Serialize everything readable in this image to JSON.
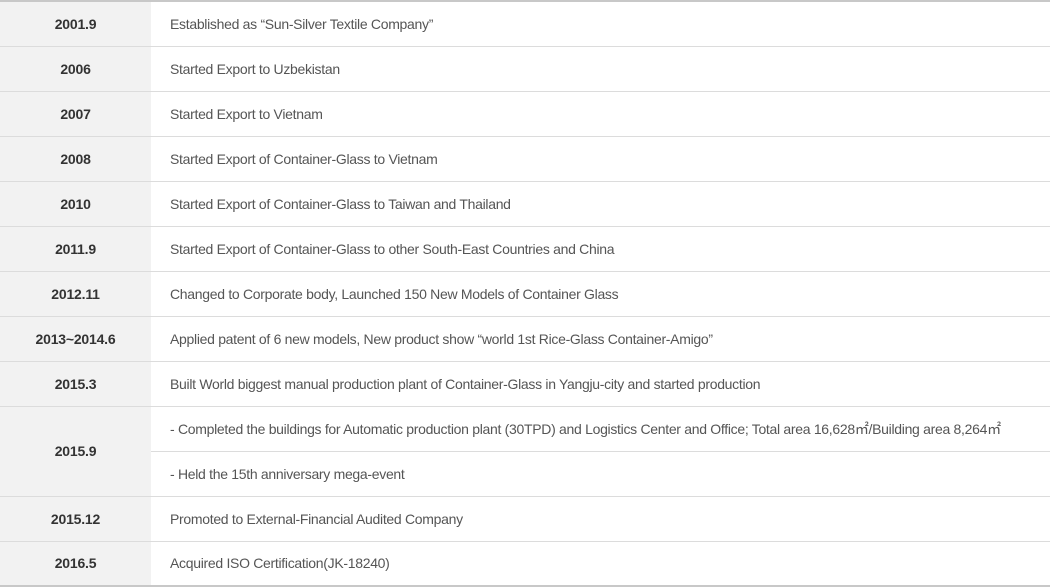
{
  "history": [
    {
      "year": "2001.9",
      "events": [
        "Established as “Sun-Silver Textile Company”"
      ]
    },
    {
      "year": "2006",
      "events": [
        "Started Export to Uzbekistan"
      ]
    },
    {
      "year": "2007",
      "events": [
        "Started Export to Vietnam"
      ]
    },
    {
      "year": "2008",
      "events": [
        "Started Export of Container-Glass to Vietnam"
      ]
    },
    {
      "year": "2010",
      "events": [
        "Started Export of Container-Glass to Taiwan and Thailand"
      ]
    },
    {
      "year": "2011.9",
      "events": [
        "Started Export of Container-Glass to other South-East Countries and China"
      ]
    },
    {
      "year": "2012.11",
      "events": [
        "Changed to Corporate body, Launched 150 New Models of Container Glass"
      ]
    },
    {
      "year": "2013~2014.6",
      "events": [
        "Applied patent of 6 new models, New product show “world 1st Rice-Glass Container-Amigo”"
      ]
    },
    {
      "year": "2015.3",
      "events": [
        "Built World biggest manual production plant of Container-Glass in Yangju-city and started production"
      ]
    },
    {
      "year": "2015.9",
      "events": [
        "- Completed the buildings for Automatic production plant (30TPD) and Logistics Center and Office; Total area 16,628㎡/Building area 8,264㎡",
        "- Held the 15th anniversary mega-event"
      ]
    },
    {
      "year": "2015.12",
      "events": [
        "Promoted to External-Financial Audited Company"
      ]
    },
    {
      "year": "2016.5",
      "events": [
        "Acquired ISO Certification(JK-18240)"
      ]
    }
  ]
}
